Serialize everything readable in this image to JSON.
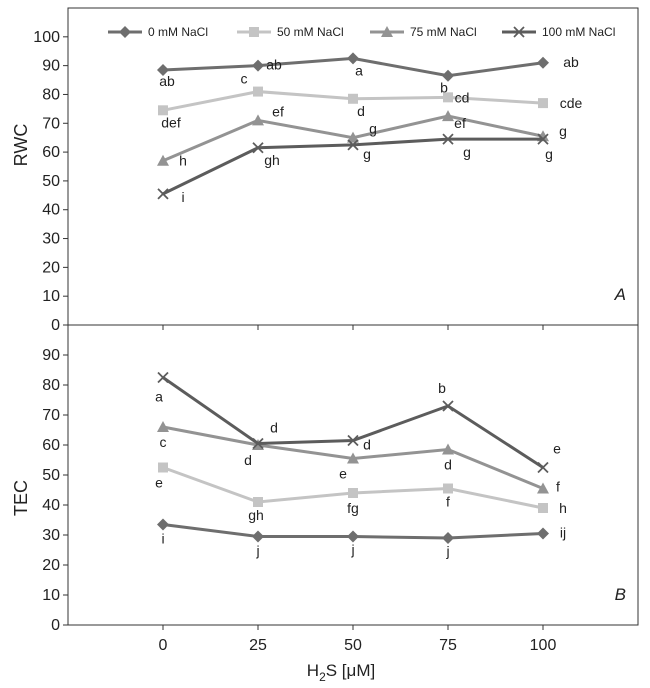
{
  "chart_data": [
    {
      "type": "line",
      "panel_label": "A",
      "ylabel": "RWC",
      "xlabel": "",
      "x": [
        0,
        25,
        50,
        75,
        100
      ],
      "xlim": [
        -25,
        125
      ],
      "ylim": [
        0,
        110
      ],
      "yticks": [
        0,
        10,
        20,
        30,
        40,
        50,
        60,
        70,
        80,
        90,
        100
      ],
      "legend": [
        "0 mM NaCl",
        "50 mM NaCl",
        "75 mM NaCl",
        "100 mM NaCl"
      ],
      "series": [
        {
          "name": "0 mM NaCl",
          "color": "#6e6e6e",
          "marker": "diamond",
          "values": [
            88.5,
            90,
            92.5,
            86.5,
            91
          ],
          "letters": [
            "ab",
            "ab",
            "a",
            "b",
            "ab"
          ]
        },
        {
          "name": "50 mM NaCl",
          "color": "#c4c4c4",
          "marker": "square",
          "values": [
            74.5,
            81,
            78.5,
            79,
            77
          ],
          "letters": [
            "def",
            "c",
            "d",
            "cd",
            "cde"
          ]
        },
        {
          "name": "75 mM NaCl",
          "color": "#939393",
          "marker": "triangle",
          "values": [
            57,
            71,
            65,
            72.5,
            65.5
          ],
          "letters": [
            "h",
            "ef",
            "g",
            "ef",
            "g"
          ]
        },
        {
          "name": "100 mM NaCl",
          "color": "#5c5c5c",
          "marker": "x",
          "values": [
            45.5,
            61.5,
            62.5,
            64.5,
            64.5
          ],
          "letters": [
            "i",
            "gh",
            "g",
            "g",
            "g"
          ]
        }
      ]
    },
    {
      "type": "line",
      "panel_label": "B",
      "ylabel": "TEC",
      "xlabel": "H2S [μM]",
      "x": [
        0,
        25,
        50,
        75,
        100
      ],
      "xticks": [
        "0",
        "25",
        "50",
        "75",
        "100"
      ],
      "xlim": [
        -25,
        125
      ],
      "ylim": [
        0,
        100
      ],
      "yticks": [
        0,
        10,
        20,
        30,
        40,
        50,
        60,
        70,
        80,
        90
      ],
      "series": [
        {
          "name": "0 mM NaCl",
          "color": "#6e6e6e",
          "marker": "diamond",
          "values": [
            33.5,
            29.5,
            29.5,
            29,
            30.5
          ],
          "letters": [
            "i",
            "j",
            "j",
            "j",
            "ij"
          ]
        },
        {
          "name": "50 mM NaCl",
          "color": "#c4c4c4",
          "marker": "square",
          "values": [
            52.5,
            41,
            44,
            45.5,
            39
          ],
          "letters": [
            "e",
            "gh",
            "fg",
            "f",
            "h"
          ]
        },
        {
          "name": "75 mM NaCl",
          "color": "#939393",
          "marker": "triangle",
          "values": [
            66,
            60,
            55.5,
            58.5,
            45.5
          ],
          "letters": [
            "c",
            "d",
            "e",
            "d",
            "f"
          ]
        },
        {
          "name": "100 mM NaCl",
          "color": "#5c5c5c",
          "marker": "x",
          "values": [
            82.5,
            60.5,
            61.5,
            73,
            52.5
          ],
          "letters": [
            "a",
            "d",
            "d",
            "b",
            "e"
          ]
        }
      ]
    }
  ],
  "axis_titles": {
    "top_y": "RWC",
    "bottom_y": "TEC",
    "x_main": "H",
    "x_sub": "2",
    "x_rest": "S [μM]"
  }
}
